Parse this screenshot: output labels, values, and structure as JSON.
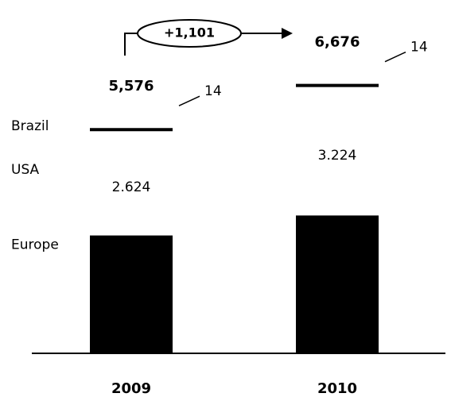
{
  "chart_data": {
    "type": "stacked_bar",
    "categories": [
      "2009",
      "2010"
    ],
    "series": [
      {
        "name": "Europe",
        "color": "#000000",
        "values": [
          2938,
          3438
        ]
      },
      {
        "name": "USA",
        "color": "#ffffff",
        "values": [
          2624,
          3224
        ],
        "value_labels": [
          "2.624",
          "3.224"
        ]
      },
      {
        "name": "Brazil",
        "color": "#000000",
        "values": [
          14,
          14
        ]
      }
    ],
    "totals": {
      "values": [
        5576,
        6676
      ],
      "value_labels": [
        "5,576",
        "6,676"
      ]
    },
    "delta": {
      "value": 1101,
      "label": "+1,101"
    },
    "ylim": [
      0,
      7500
    ]
  }
}
